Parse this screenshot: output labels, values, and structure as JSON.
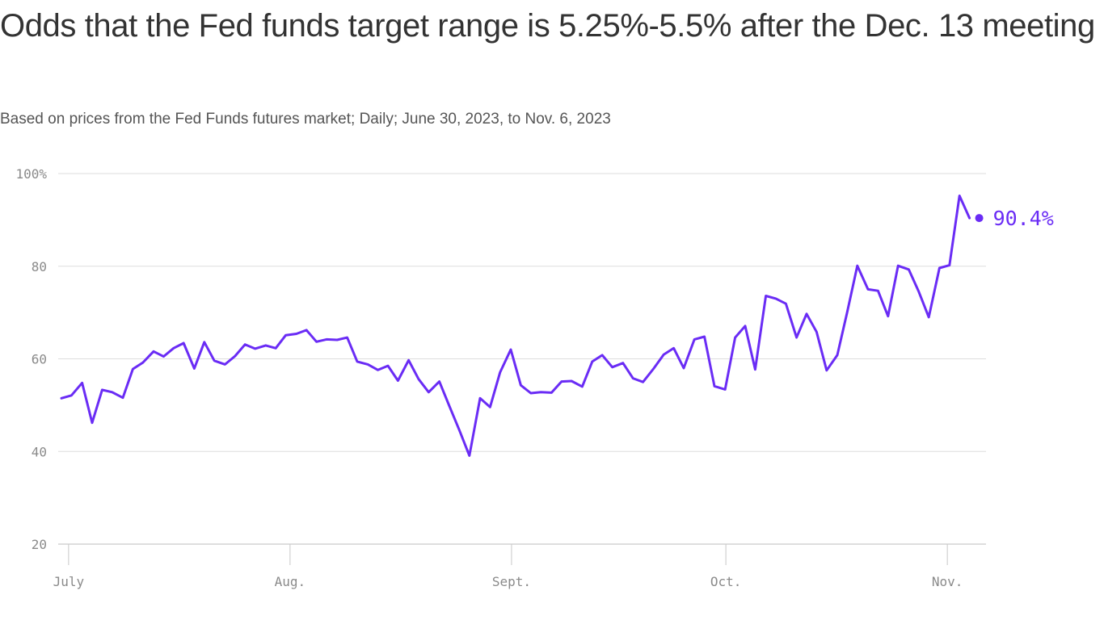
{
  "chart_data": {
    "type": "line",
    "title": "Odds that the Fed funds target range is 5.25%-5.5% after the Dec. 13 meeting",
    "subtitle": "Based on prices from the Fed Funds futures market; Daily; June 30, 2023, to Nov. 6, 2023",
    "xlabel": "",
    "ylabel": "",
    "ylim": [
      20,
      100
    ],
    "y_ticks": [
      {
        "value": 100,
        "label": "100%"
      },
      {
        "value": 80,
        "label": "80"
      },
      {
        "value": 60,
        "label": "60"
      },
      {
        "value": 40,
        "label": "40"
      },
      {
        "value": 20,
        "label": "20"
      }
    ],
    "x_start": "2023-06-30",
    "x_ticks": [
      {
        "day": 1,
        "label": "July"
      },
      {
        "day": 32,
        "label": "Aug."
      },
      {
        "day": 63,
        "label": "Sept."
      },
      {
        "day": 93,
        "label": "Oct."
      },
      {
        "day": 124,
        "label": "Nov."
      }
    ],
    "series": [
      {
        "name": "Odds",
        "color": "#6a2cf5",
        "points": [
          [
            0,
            51.5
          ],
          [
            1.4,
            52.1
          ],
          [
            2.9,
            54.8
          ],
          [
            4.3,
            46.2
          ],
          [
            5.7,
            53.3
          ],
          [
            7.1,
            52.8
          ],
          [
            8.6,
            51.6
          ],
          [
            10,
            57.8
          ],
          [
            11.4,
            59.2
          ],
          [
            12.9,
            61.6
          ],
          [
            14.3,
            60.5
          ],
          [
            15.7,
            62.3
          ],
          [
            17.1,
            63.4
          ],
          [
            18.6,
            57.9
          ],
          [
            20,
            63.6
          ],
          [
            21.4,
            59.6
          ],
          [
            22.9,
            58.8
          ],
          [
            24.3,
            60.6
          ],
          [
            25.7,
            63.1
          ],
          [
            27.1,
            62.2
          ],
          [
            28.6,
            62.9
          ],
          [
            30,
            62.3
          ],
          [
            31.4,
            65.1
          ],
          [
            32.9,
            65.4
          ],
          [
            34.3,
            66.2
          ],
          [
            35.7,
            63.7
          ],
          [
            37.1,
            64.2
          ],
          [
            38.6,
            64.1
          ],
          [
            40,
            64.6
          ],
          [
            41.4,
            59.4
          ],
          [
            42.9,
            58.8
          ],
          [
            44.3,
            57.6
          ],
          [
            45.7,
            58.5
          ],
          [
            47.1,
            55.3
          ],
          [
            48.6,
            59.7
          ],
          [
            50,
            55.6
          ],
          [
            51.4,
            52.8
          ],
          [
            52.9,
            55.1
          ],
          [
            54.3,
            49.8
          ],
          [
            55.7,
            44.6
          ],
          [
            57.1,
            39.1
          ],
          [
            58.6,
            51.5
          ],
          [
            60,
            49.6
          ],
          [
            61.4,
            57.1
          ],
          [
            62.9,
            62
          ],
          [
            64.3,
            54.3
          ],
          [
            65.7,
            52.6
          ],
          [
            67.1,
            52.8
          ],
          [
            68.6,
            52.7
          ],
          [
            70,
            55.1
          ],
          [
            71.4,
            55.2
          ],
          [
            72.9,
            54
          ],
          [
            74.3,
            59.4
          ],
          [
            75.7,
            60.8
          ],
          [
            77.1,
            58.2
          ],
          [
            78.6,
            59.1
          ],
          [
            80,
            55.8
          ],
          [
            81.4,
            55
          ],
          [
            82.9,
            57.9
          ],
          [
            84.3,
            60.9
          ],
          [
            85.7,
            62.3
          ],
          [
            87.1,
            58
          ],
          [
            88.6,
            64.2
          ],
          [
            90,
            64.8
          ],
          [
            91.4,
            54.1
          ],
          [
            92.9,
            53.4
          ],
          [
            94.3,
            64.6
          ],
          [
            95.7,
            67.1
          ],
          [
            97.1,
            57.7
          ],
          [
            98.6,
            73.6
          ],
          [
            100,
            73
          ],
          [
            101.4,
            71.9
          ],
          [
            102.9,
            64.6
          ],
          [
            104.3,
            69.7
          ],
          [
            105.7,
            65.8
          ],
          [
            107.1,
            57.5
          ],
          [
            108.6,
            60.8
          ],
          [
            110,
            70.2
          ],
          [
            111.4,
            80.1
          ],
          [
            112.9,
            75
          ],
          [
            114.3,
            74.7
          ],
          [
            115.7,
            69.2
          ],
          [
            117.1,
            80.1
          ],
          [
            118.6,
            79.3
          ],
          [
            120,
            74.5
          ],
          [
            121.4,
            69
          ],
          [
            122.9,
            79.6
          ],
          [
            124.3,
            80.2
          ],
          [
            125.7,
            95.2
          ],
          [
            127.1,
            90.4
          ]
        ],
        "end_value": 90.4,
        "end_label": "90.4%"
      }
    ]
  }
}
